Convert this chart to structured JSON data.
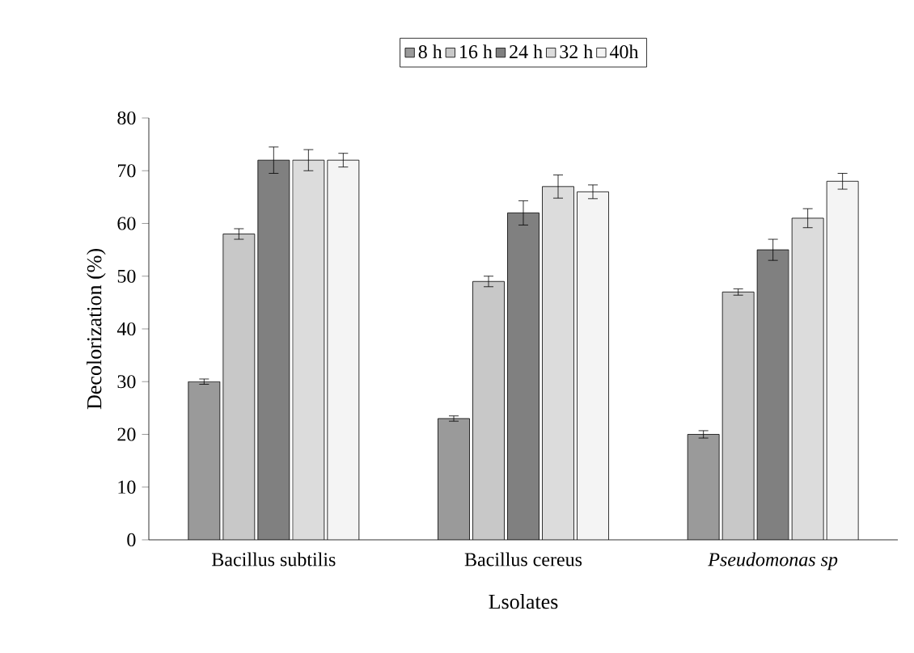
{
  "chart_data": {
    "type": "bar",
    "xlabel": "Lsolates",
    "ylabel": "Decolorization (%)",
    "categories": [
      "Bacillus subtilis",
      "Bacillus cereus",
      "*Pseudomonas sp*"
    ],
    "series": [
      {
        "name": "8 h",
        "color": "#9a9a9a",
        "values": [
          30,
          23,
          20
        ],
        "errors": [
          0.5,
          0.5,
          0.7
        ]
      },
      {
        "name": "16 h",
        "color": "#c8c8c8",
        "values": [
          58,
          49,
          47
        ],
        "errors": [
          1,
          1,
          0.6
        ]
      },
      {
        "name": "24 h",
        "color": "#808080",
        "values": [
          72,
          62,
          55
        ],
        "errors": [
          2.5,
          2.3,
          2
        ]
      },
      {
        "name": "32 h",
        "color": "#dcdcdc",
        "values": [
          72,
          67,
          61
        ],
        "errors": [
          2,
          2.2,
          1.8
        ]
      },
      {
        "name": "40h",
        "color": "#f4f4f4",
        "values": [
          72,
          66,
          68
        ],
        "errors": [
          1.3,
          1.3,
          1.5
        ]
      }
    ],
    "ylim": [
      0,
      80
    ],
    "yticks": [
      0,
      10,
      20,
      30,
      40,
      50,
      60,
      70,
      80
    ],
    "legend": "top",
    "grid": false
  }
}
